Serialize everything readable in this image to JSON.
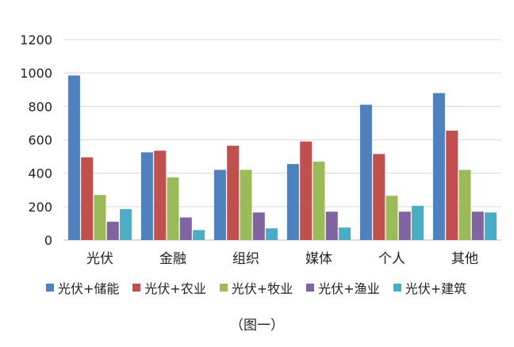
{
  "chart_data": {
    "type": "bar",
    "categories": [
      "光伏",
      "金融",
      "组织",
      "媒体",
      "个人",
      "其他"
    ],
    "series": [
      {
        "name": "光伏+储能",
        "color": "#4f81bd",
        "values": [
          985,
          525,
          420,
          455,
          810,
          880
        ]
      },
      {
        "name": "光伏+农业",
        "color": "#c0504d",
        "values": [
          495,
          535,
          565,
          590,
          515,
          655
        ]
      },
      {
        "name": "光伏+牧业",
        "color": "#9bbb59",
        "values": [
          270,
          375,
          420,
          470,
          265,
          420
        ]
      },
      {
        "name": "光伏+渔业",
        "color": "#8064a2",
        "values": [
          110,
          135,
          165,
          170,
          170,
          170
        ]
      },
      {
        "name": "光伏+建筑",
        "color": "#4bacc6",
        "values": [
          185,
          60,
          70,
          75,
          205,
          165
        ]
      }
    ],
    "yticks": [
      "0",
      "200",
      "400",
      "600",
      "800",
      "1000",
      "1200"
    ],
    "ylim": [
      0,
      1200
    ],
    "grid": true,
    "legend_position": "bottom"
  },
  "caption": "（图一）"
}
